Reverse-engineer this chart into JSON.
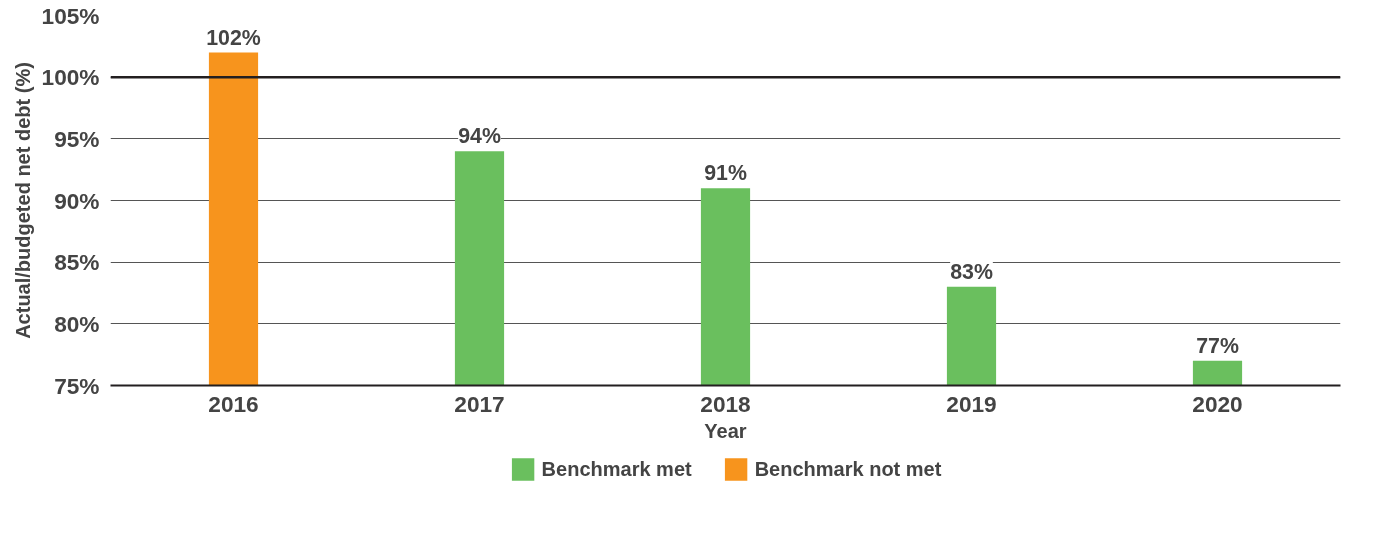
{
  "chart_data": {
    "type": "bar",
    "xlabel": "Year",
    "ylabel": "Actual/budgeted net debt (%)",
    "categories": [
      "2016",
      "2017",
      "2018",
      "2019",
      "2020"
    ],
    "series": [
      {
        "name": "Benchmark met",
        "color": "#6abf5e",
        "values": [
          null,
          94,
          91,
          83,
          77
        ],
        "value_labels": [
          null,
          "94%",
          "91%",
          "83%",
          "77%"
        ]
      },
      {
        "name": "Benchmark not met",
        "color": "#f7941d",
        "values": [
          102,
          null,
          null,
          null,
          null
        ],
        "value_labels": [
          "102%",
          null,
          null,
          null,
          null
        ]
      }
    ],
    "ylim": [
      75,
      105
    ],
    "yticks": [
      {
        "value": 75,
        "label": "75%"
      },
      {
        "value": 80,
        "label": "80%"
      },
      {
        "value": 85,
        "label": "85%"
      },
      {
        "value": 90,
        "label": "90%"
      },
      {
        "value": 95,
        "label": "95%"
      },
      {
        "value": 100,
        "label": "100%"
      },
      {
        "value": 105,
        "label": "105%"
      }
    ],
    "ref_lines": [
      {
        "axis": "y",
        "value": 100,
        "label": null,
        "color": "#231f20"
      }
    ],
    "grid": "y",
    "legend": "bottom"
  }
}
